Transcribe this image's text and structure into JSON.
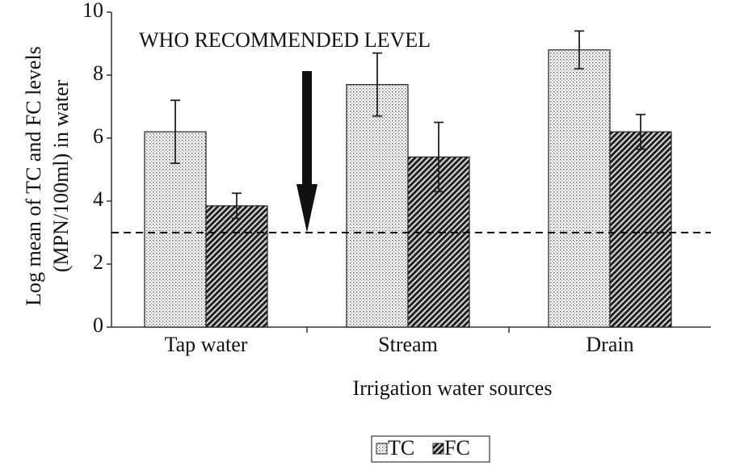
{
  "chart_data": {
    "type": "bar",
    "xlabel": "Irrigation water sources",
    "ylabel": [
      "Log mean of TC and FC levels",
      "(MPN/100ml) in water"
    ],
    "categories": [
      "Tap water",
      "Stream",
      "Drain"
    ],
    "series": [
      {
        "name": "TC",
        "color": "#555555",
        "pattern": "dots",
        "values": [
          6.2,
          7.7,
          8.8
        ],
        "errors": [
          1.0,
          1.0,
          0.6
        ]
      },
      {
        "name": "FC",
        "color": "#222222",
        "pattern": "hatch",
        "values": [
          3.85,
          5.4,
          6.2
        ],
        "errors": [
          0.4,
          1.1,
          0.55
        ]
      }
    ],
    "ylim": [
      0,
      10
    ],
    "yticks": [
      0,
      2,
      4,
      6,
      8,
      10
    ],
    "reference_line": {
      "value": 3,
      "label": "WHO RECOMMENDED LEVEL"
    },
    "legend": "bottom"
  }
}
